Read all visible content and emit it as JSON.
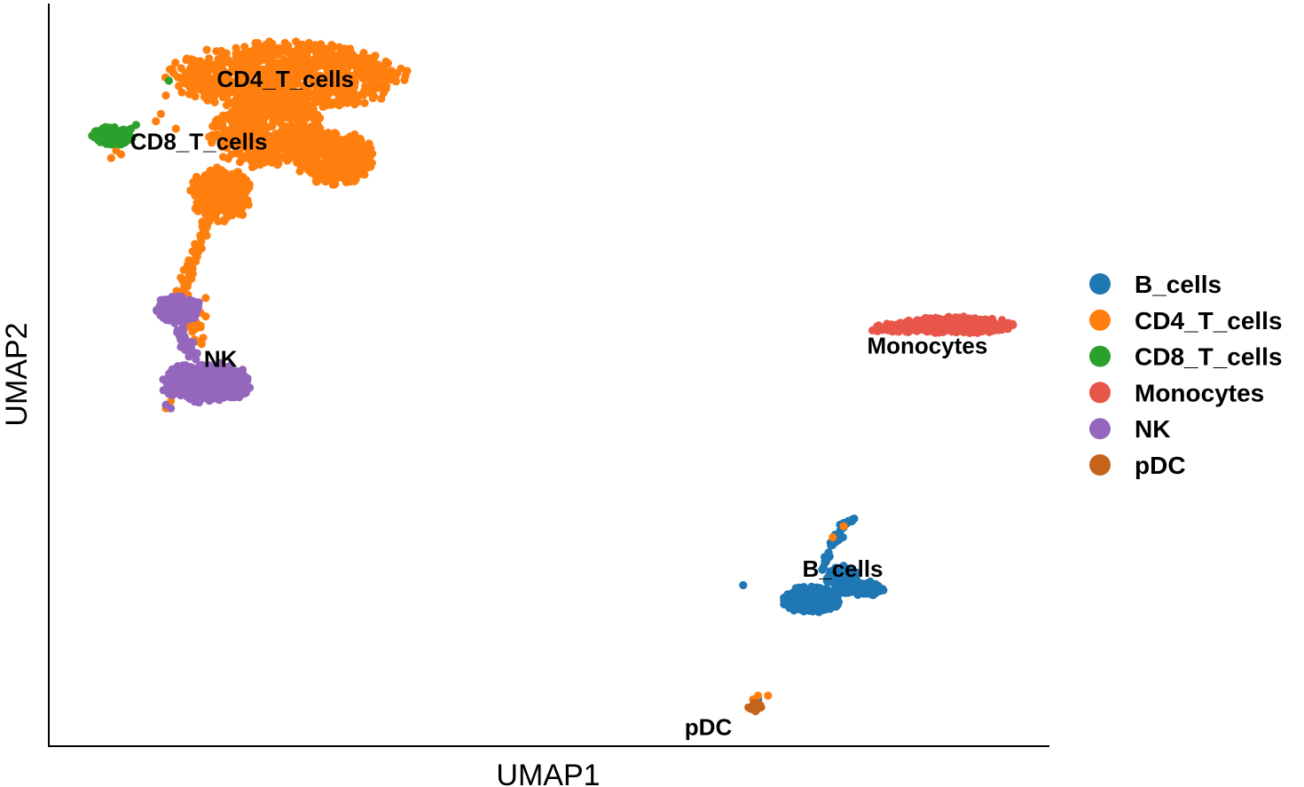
{
  "chart_data": {
    "type": "scatter",
    "title": "",
    "xlabel": "UMAP1",
    "ylabel": "UMAP2",
    "xlim": [
      0,
      100
    ],
    "ylim": [
      0,
      100
    ],
    "grid": false,
    "legend_position": "right",
    "series": [
      {
        "name": "B_cells",
        "color": "#1f77b4",
        "label": {
          "text": "B_cells",
          "x": 79.5,
          "y": 23.5
        },
        "blobs": [
          {
            "cx": 76.5,
            "cy": 19.5,
            "rx": 2.8,
            "ry": 1.8,
            "n": 260
          },
          {
            "cx": 79.5,
            "cy": 22.5,
            "rx": 1.6,
            "ry": 1.6,
            "n": 120
          },
          {
            "cx": 81.5,
            "cy": 21.0,
            "rx": 2.0,
            "ry": 1.0,
            "n": 70
          }
        ],
        "trails": [
          {
            "points": [
              [
                77.5,
                23.5
              ],
              [
                78.5,
                27.0
              ],
              [
                79.5,
                29.5
              ],
              [
                80.6,
                30.5
              ]
            ],
            "n": 40,
            "spread": 0.4
          }
        ],
        "strays": [
          [
            71.0,
            6.0
          ],
          [
            69.5,
            21.5
          ],
          [
            83.5,
            21.0
          ],
          [
            93.7,
            57.1
          ],
          [
            88.5,
            57.5
          ],
          [
            84.5,
            56.6
          ]
        ]
      },
      {
        "name": "CD4_T_cells",
        "color": "#ff7f0e",
        "label": {
          "text": "CD4_T_cells",
          "x": 23.5,
          "y": 90.0
        },
        "blobs": [
          {
            "cx": 23.5,
            "cy": 90.5,
            "rx": 11.5,
            "ry": 4.5,
            "n": 900
          },
          {
            "cx": 21.5,
            "cy": 83.0,
            "rx": 5.5,
            "ry": 4.5,
            "n": 450
          },
          {
            "cx": 28.5,
            "cy": 79.5,
            "rx": 4.0,
            "ry": 3.5,
            "n": 350
          },
          {
            "cx": 17.0,
            "cy": 74.5,
            "rx": 3.0,
            "ry": 3.5,
            "n": 260
          }
        ],
        "trails": [
          {
            "points": [
              [
                16.0,
                72.0
              ],
              [
                14.5,
                67.0
              ],
              [
                13.5,
                63.0
              ],
              [
                13.2,
                59.0
              ]
            ],
            "n": 70,
            "spread": 0.7
          },
          {
            "points": [
              [
                13.5,
                60.0
              ],
              [
                14.5,
                57.0
              ],
              [
                14.0,
                54.0
              ]
            ],
            "n": 25,
            "spread": 1.0
          }
        ],
        "strays": [
          [
            6.5,
            80.5
          ],
          [
            6.0,
            79.5
          ],
          [
            7.0,
            80.0
          ],
          [
            10.5,
            84.5
          ],
          [
            11.0,
            85.5
          ],
          [
            12.5,
            83.5
          ],
          [
            11.5,
            88.0
          ],
          [
            15.5,
            60.5
          ],
          [
            15.5,
            58.0
          ],
          [
            11.5,
            45.5
          ],
          [
            12.0,
            46.5
          ],
          [
            20.0,
            80.0
          ],
          [
            25.0,
            85.0
          ],
          [
            27.0,
            83.5
          ],
          [
            71.0,
            6.5
          ],
          [
            70.5,
            6.0
          ],
          [
            72.0,
            6.5
          ],
          [
            79.6,
            29.5
          ],
          [
            78.5,
            28.0
          ]
        ]
      },
      {
        "name": "CD8_T_cells",
        "color": "#2ca02c",
        "label": {
          "text": "CD8_T_cells",
          "x": 14.8,
          "y": 81.5
        },
        "blobs": [
          {
            "cx": 6.2,
            "cy": 82.5,
            "rx": 2.0,
            "ry": 1.3,
            "n": 180
          }
        ],
        "trails": [],
        "strays": [
          [
            8.0,
            83.5
          ],
          [
            8.5,
            84.0
          ],
          [
            11.8,
            90.0
          ]
        ]
      },
      {
        "name": "Monocytes",
        "color": "#e8564a",
        "label": {
          "text": "Monocytes",
          "x": 88.0,
          "y": 53.8
        },
        "blobs": [
          {
            "cx": 91.0,
            "cy": 56.8,
            "rx": 5.5,
            "ry": 1.1,
            "n": 380
          },
          {
            "cx": 85.5,
            "cy": 56.6,
            "rx": 2.5,
            "ry": 0.7,
            "n": 60
          }
        ],
        "trails": [],
        "strays": [
          [
            83.0,
            56.0
          ],
          [
            84.0,
            56.3
          ],
          [
            82.5,
            56.1
          ],
          [
            96.0,
            57.0
          ],
          [
            95.5,
            56.2
          ]
        ]
      },
      {
        "name": "NK",
        "color": "#9467bd",
        "label": {
          "text": "NK",
          "x": 17.0,
          "y": 52.0
        },
        "blobs": [
          {
            "cx": 15.5,
            "cy": 49.0,
            "rx": 4.5,
            "ry": 2.6,
            "n": 500
          },
          {
            "cx": 12.8,
            "cy": 59.0,
            "rx": 2.2,
            "ry": 1.8,
            "n": 170
          }
        ],
        "trails": [
          {
            "points": [
              [
                13.0,
                56.5
              ],
              [
                13.5,
                54.0
              ],
              [
                14.5,
                52.0
              ]
            ],
            "n": 30,
            "spread": 0.5
          }
        ],
        "strays": [
          [
            11.5,
            46.0
          ],
          [
            12.0,
            45.5
          ]
        ]
      },
      {
        "name": "pDC",
        "color": "#c4641a",
        "label": {
          "text": "pDC",
          "x": 66.0,
          "y": 2.0
        },
        "blobs": [
          {
            "cx": 70.7,
            "cy": 5.0,
            "rx": 0.7,
            "ry": 0.6,
            "n": 22
          }
        ],
        "trails": [],
        "strays": [
          [
            70.2,
            4.8
          ],
          [
            71.2,
            5.2
          ]
        ]
      }
    ]
  }
}
